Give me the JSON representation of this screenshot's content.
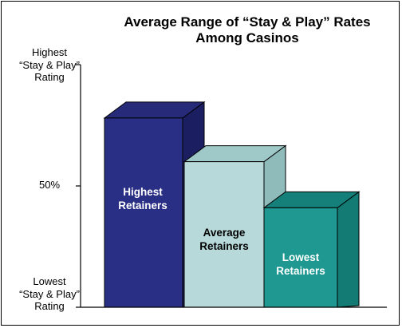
{
  "chart_data": {
    "type": "bar",
    "title": "Average Range of “Stay & Play” Rates Among Casinos",
    "categories": [
      "Highest Retainers",
      "Average Retainers",
      "Lowest Retainers"
    ],
    "values": [
      78,
      60,
      41
    ],
    "ylim": [
      0,
      100
    ],
    "yticks": [
      {
        "value": 100,
        "label": "Highest\n“Stay & Play”\nRating"
      },
      {
        "value": 50,
        "label": "50%"
      },
      {
        "value": 0,
        "label": "Lowest\n“Stay & Play”\nRating"
      }
    ],
    "colors": {
      "bar_front": [
        "#2a2f86",
        "#b7d9d9",
        "#1f9891"
      ],
      "bar_side": [
        "#1b1f62",
        "#8fbcbb",
        "#137a74"
      ],
      "bar_top": [
        "#262a78",
        "#9ec9c8",
        "#157f79"
      ],
      "label_text": [
        "#ffffff",
        "#000000",
        "#ffffff"
      ]
    },
    "grid": false,
    "legend": "none"
  }
}
